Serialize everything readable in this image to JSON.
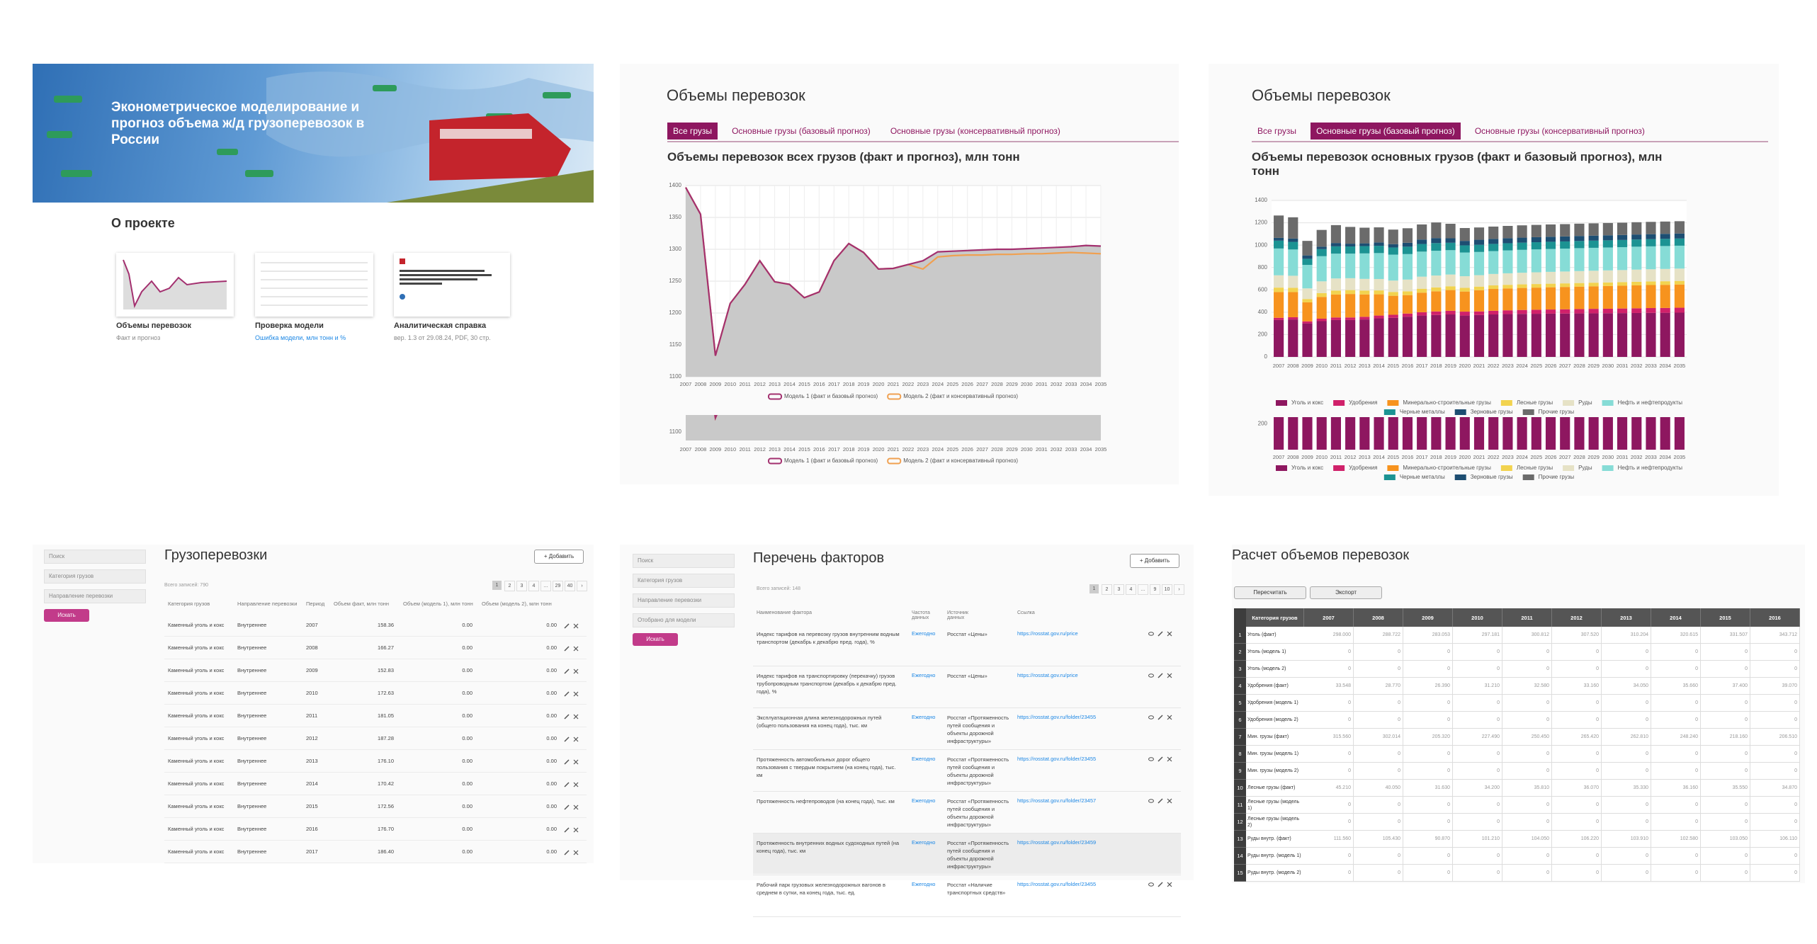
{
  "home": {
    "banner_title": "Эконометрическое моделирование и прогноз объема ж/д грузоперевозок в России",
    "about_title": "О проекте",
    "cards": [
      {
        "title": "Объемы перевозок",
        "subtitle": "Факт и прогноз"
      },
      {
        "title": "Проверка модели",
        "subtitle": "Ошибка модели, млн тонн и %"
      },
      {
        "title": "Аналитическая справка",
        "subtitle": "вер. 1.3 от 29.08.24, PDF, 30 стр."
      }
    ]
  },
  "volumes_all": {
    "title": "Объемы перевозок",
    "tabs": [
      "Все грузы",
      "Основные грузы (базовый прогноз)",
      "Основные грузы (консервативный прогноз)"
    ],
    "active_tab": 0
  },
  "volumes_main": {
    "title": "Объемы перевозок",
    "tabs": [
      "Все грузы",
      "Основные грузы (базовый прогноз)",
      "Основные грузы (консервативный прогноз)"
    ],
    "active_tab": 1
  },
  "chart_data": [
    {
      "type": "line",
      "title": "Объемы перевозок всех грузов (факт и прогноз), млн тонн",
      "categories": [
        "2007",
        "2008",
        "2009",
        "2010",
        "2011",
        "2012",
        "2013",
        "2014",
        "2015",
        "2016",
        "2017",
        "2018",
        "2019",
        "2020",
        "2021",
        "2022",
        "2023",
        "2024",
        "2025",
        "2026",
        "2027",
        "2028",
        "2029",
        "2030",
        "2031",
        "2032",
        "2033",
        "2034",
        "2035"
      ],
      "ylim": [
        1100,
        1400
      ],
      "yticks": [
        1100,
        1150,
        1200,
        1250,
        1300,
        1350,
        1400
      ],
      "grid": true,
      "area": true,
      "series": [
        {
          "name": "Модель 1 (факт и базовый прогноз)",
          "color": "#a3306f",
          "values": [
            1397,
            1355,
            1133,
            1215,
            1245,
            1282,
            1249,
            1245,
            1224,
            1233,
            1282,
            1309,
            1295,
            1269,
            1270,
            1276,
            1282,
            1296,
            1297,
            1298,
            1299,
            1300,
            1300,
            1301,
            1302,
            1303,
            1304,
            1306,
            1305
          ]
        },
        {
          "name": "Модель 2 (факт и консервативный прогноз)",
          "color": "#f0a050",
          "values": [
            1397,
            1355,
            1133,
            1215,
            1245,
            1282,
            1249,
            1245,
            1224,
            1233,
            1282,
            1309,
            1295,
            1269,
            1270,
            1276,
            1269,
            1288,
            1290,
            1291,
            1291,
            1292,
            1292,
            1293,
            1293,
            1294,
            1295,
            1294,
            1293
          ]
        }
      ],
      "navigator": {
        "ylim": [
          1080,
          1140
        ],
        "yticks": [
          1100
        ]
      }
    },
    {
      "type": "bar",
      "stacked": true,
      "title": "Объемы перевозок основных грузов (факт и базовый прогноз), млн тонн",
      "categories": [
        "2007",
        "2008",
        "2009",
        "2010",
        "2011",
        "2012",
        "2013",
        "2014",
        "2015",
        "2016",
        "2017",
        "2018",
        "2019",
        "2020",
        "2021",
        "2022",
        "2023",
        "2024",
        "2025",
        "2026",
        "2027",
        "2028",
        "2029",
        "2030",
        "2031",
        "2032",
        "2033",
        "2034",
        "2035"
      ],
      "ylim": [
        0,
        1400
      ],
      "yticks": [
        0,
        200,
        400,
        600,
        800,
        1000,
        1200,
        1400
      ],
      "grid": true,
      "series": [
        {
          "name": "Уголь и кокс",
          "color": "#8e1760",
          "values": [
            330,
            335,
            300,
            320,
            330,
            330,
            335,
            345,
            350,
            360,
            370,
            375,
            380,
            370,
            375,
            380,
            383,
            385,
            386,
            387,
            388,
            389,
            390,
            391,
            392,
            393,
            394,
            395,
            396
          ]
        },
        {
          "name": "Удобрения",
          "color": "#d0216a",
          "values": [
            20,
            20,
            18,
            22,
            23,
            23,
            24,
            25,
            27,
            28,
            30,
            32,
            33,
            35,
            32,
            33,
            34,
            35,
            36,
            37,
            38,
            39,
            40,
            40,
            41,
            42,
            43,
            43,
            44
          ]
        },
        {
          "name": "Минерально-строительные грузы",
          "color": "#f7931e",
          "values": [
            230,
            225,
            170,
            195,
            205,
            210,
            200,
            190,
            170,
            165,
            175,
            180,
            185,
            180,
            190,
            195,
            196,
            197,
            198,
            199,
            200,
            201,
            202,
            203,
            204,
            205,
            206,
            207,
            208
          ]
        },
        {
          "name": "Лесные грузы",
          "color": "#f2d34f",
          "values": [
            40,
            38,
            30,
            34,
            36,
            35,
            35,
            35,
            34,
            34,
            35,
            35,
            34,
            33,
            32,
            32,
            32,
            32,
            32,
            32,
            32,
            32,
            32,
            32,
            32,
            32,
            32,
            32,
            32
          ]
        },
        {
          "name": "Руды",
          "color": "#e6e2c6",
          "values": [
            110,
            108,
            95,
            105,
            108,
            106,
            104,
            102,
            102,
            105,
            108,
            106,
            105,
            104,
            102,
            102,
            103,
            104,
            105,
            106,
            106,
            107,
            107,
            108,
            108,
            109,
            109,
            110,
            110
          ]
        },
        {
          "name": "Нефть и нефтепродукты",
          "color": "#86dcd6",
          "values": [
            240,
            235,
            210,
            225,
            222,
            220,
            228,
            232,
            232,
            228,
            224,
            222,
            218,
            212,
            208,
            205,
            205,
            205,
            205,
            205,
            205,
            205,
            205,
            205,
            205,
            205,
            205,
            205,
            205
          ]
        },
        {
          "name": "Черные металлы",
          "color": "#1c9393",
          "values": [
            70,
            68,
            55,
            63,
            65,
            64,
            65,
            65,
            64,
            66,
            68,
            68,
            66,
            64,
            64,
            64,
            64,
            64,
            64,
            64,
            64,
            64,
            64,
            64,
            64,
            64,
            64,
            64,
            64
          ]
        },
        {
          "name": "Зерновые грузы",
          "color": "#1d4e72",
          "values": [
            25,
            30,
            30,
            22,
            30,
            25,
            25,
            30,
            30,
            35,
            40,
            45,
            40,
            40,
            45,
            45,
            45,
            45,
            45,
            45,
            45,
            45,
            45,
            45,
            45,
            45,
            45,
            45,
            45
          ]
        },
        {
          "name": "Прочие грузы",
          "color": "#6b6b6b",
          "values": [
            200,
            190,
            130,
            150,
            160,
            150,
            140,
            135,
            130,
            130,
            135,
            140,
            130,
            115,
            110,
            110,
            110,
            110,
            110,
            110,
            110,
            110,
            110,
            110,
            110,
            110,
            110,
            110,
            110
          ]
        }
      ],
      "navigator": {
        "ylim": [
          0,
          250
        ],
        "yticks": [
          200
        ]
      }
    }
  ],
  "cargo": {
    "title": "Грузоперевозки",
    "add_button": "+ Добавить",
    "filters": [
      "Поиск",
      "Категория грузов",
      "Направление перевозки"
    ],
    "search_button": "Искать",
    "records": "Всего записей: 790",
    "pages": [
      "1",
      "2",
      "3",
      "4",
      "…",
      "29",
      "40",
      "›"
    ],
    "headers": [
      "Категория грузов",
      "Направление перевозки",
      "Период",
      "Объем факт, млн тонн",
      "Объем (модель 1), млн тонн",
      "Объем (модель 2), млн тонн"
    ],
    "rows": [
      [
        "Каменный уголь и кокс",
        "Внутреннее",
        "2007",
        "158.36",
        "0.00",
        "0.00"
      ],
      [
        "Каменный уголь и кокс",
        "Внутреннее",
        "2008",
        "166.27",
        "0.00",
        "0.00"
      ],
      [
        "Каменный уголь и кокс",
        "Внутреннее",
        "2009",
        "152.83",
        "0.00",
        "0.00"
      ],
      [
        "Каменный уголь и кокс",
        "Внутреннее",
        "2010",
        "172.63",
        "0.00",
        "0.00"
      ],
      [
        "Каменный уголь и кокс",
        "Внутреннее",
        "2011",
        "181.05",
        "0.00",
        "0.00"
      ],
      [
        "Каменный уголь и кокс",
        "Внутреннее",
        "2012",
        "187.28",
        "0.00",
        "0.00"
      ],
      [
        "Каменный уголь и кокс",
        "Внутреннее",
        "2013",
        "176.10",
        "0.00",
        "0.00"
      ],
      [
        "Каменный уголь и кокс",
        "Внутреннее",
        "2014",
        "170.42",
        "0.00",
        "0.00"
      ],
      [
        "Каменный уголь и кокс",
        "Внутреннее",
        "2015",
        "172.56",
        "0.00",
        "0.00"
      ],
      [
        "Каменный уголь и кокс",
        "Внутреннее",
        "2016",
        "176.70",
        "0.00",
        "0.00"
      ],
      [
        "Каменный уголь и кокс",
        "Внутреннее",
        "2017",
        "186.40",
        "0.00",
        "0.00"
      ]
    ]
  },
  "factors": {
    "title": "Перечень факторов",
    "add_button": "+ Добавить",
    "filters": [
      "Поиск",
      "Категория грузов",
      "Направление перевозки",
      "Отобрано для модели"
    ],
    "search_button": "Искать",
    "records": "Всего записей: 148",
    "pages": [
      "1",
      "2",
      "3",
      "4",
      "…",
      "9",
      "10",
      "›"
    ],
    "headers": [
      "Наименование фактора",
      "Частота данных",
      "Источник данных",
      "Ссылка"
    ],
    "rows": [
      {
        "name": "Индекс тарифов на перевозку грузов внутренним водным транспортом (декабрь к декабрю пред. года), %",
        "freq": "Ежегодно",
        "source": "Росстат «Цены»",
        "link": "https://rosstat.gov.ru/price"
      },
      {
        "name": "Индекс тарифов на транспортировку (перекачку) грузов трубопроводным транспортом (декабрь к декабрю пред. года), %",
        "freq": "Ежегодно",
        "source": "Росстат «Цены»",
        "link": "https://rosstat.gov.ru/price"
      },
      {
        "name": "Эксплуатационная длина железнодорожных путей (общего пользования на конец года), тыс. км",
        "freq": "Ежегодно",
        "source": "Росстат «Протяженность путей сообщения и объекты дорожной инфраструктуры»",
        "link": "https://rosstat.gov.ru/folder/23455"
      },
      {
        "name": "Протяженность автомобильных дорог общего пользования с твердым покрытием (на конец года), тыс. км",
        "freq": "Ежегодно",
        "source": "Росстат «Протяженность путей сообщения и объекты дорожной инфраструктуры»",
        "link": "https://rosstat.gov.ru/folder/23455"
      },
      {
        "name": "Протяженность нефтепроводов (на конец года), тыс. км",
        "freq": "Ежегодно",
        "source": "Росстат «Протяженность путей сообщения и объекты дорожной инфраструктуры»",
        "link": "https://rosstat.gov.ru/folder/23457"
      },
      {
        "name": "Протяженность внутренних водных судоходных путей (на конец года), тыс. км",
        "freq": "Ежегодно",
        "source": "Росстат «Протяженность путей сообщения и объекты дорожной инфраструктуры»",
        "link": "https://rosstat.gov.ru/folder/23459"
      },
      {
        "name": "Рабочий парк грузовых железнодорожных вагонов в среднем в сутки, на конец года, тыс. ед.",
        "freq": "Ежегодно",
        "source": "Росстат «Наличие транспортных средств»",
        "link": "https://rosstat.gov.ru/folder/23455"
      }
    ]
  },
  "calc": {
    "title": "Расчет объемов перевозок",
    "buttons": [
      "Пересчитать",
      "Экспорт"
    ],
    "header": [
      "Категория грузов",
      "2007",
      "2008",
      "2009",
      "2010",
      "2011",
      "2012",
      "2013",
      "2014",
      "2015",
      "2016"
    ],
    "rows": [
      {
        "n": "1",
        "name": "Уголь (факт)",
        "values": [
          "298.000",
          "288.722",
          "283.053",
          "297.181",
          "300.812",
          "307.520",
          "310.204",
          "320.615",
          "331.507",
          "343.712"
        ]
      },
      {
        "n": "2",
        "name": "Уголь (модель 1)",
        "values": [
          "0",
          "0",
          "0",
          "0",
          "0",
          "0",
          "0",
          "0",
          "0",
          "0"
        ]
      },
      {
        "n": "3",
        "name": "Уголь (модель 2)",
        "values": [
          "0",
          "0",
          "0",
          "0",
          "0",
          "0",
          "0",
          "0",
          "0",
          "0"
        ]
      },
      {
        "n": "4",
        "name": "Удобрения (факт)",
        "values": [
          "33.548",
          "28.770",
          "26.390",
          "31.210",
          "32.580",
          "33.160",
          "34.050",
          "35.660",
          "37.400",
          "39.070"
        ]
      },
      {
        "n": "5",
        "name": "Удобрения (модель 1)",
        "values": [
          "0",
          "0",
          "0",
          "0",
          "0",
          "0",
          "0",
          "0",
          "0",
          "0"
        ]
      },
      {
        "n": "6",
        "name": "Удобрения (модель 2)",
        "values": [
          "0",
          "0",
          "0",
          "0",
          "0",
          "0",
          "0",
          "0",
          "0",
          "0"
        ]
      },
      {
        "n": "7",
        "name": "Мин. грузы (факт)",
        "values": [
          "315.560",
          "302.014",
          "205.320",
          "227.490",
          "250.450",
          "265.420",
          "262.810",
          "248.240",
          "218.160",
          "206.510"
        ]
      },
      {
        "n": "8",
        "name": "Мин. грузы (модель 1)",
        "values": [
          "0",
          "0",
          "0",
          "0",
          "0",
          "0",
          "0",
          "0",
          "0",
          "0"
        ]
      },
      {
        "n": "9",
        "name": "Мин. грузы (модель 2)",
        "values": [
          "0",
          "0",
          "0",
          "0",
          "0",
          "0",
          "0",
          "0",
          "0",
          "0"
        ]
      },
      {
        "n": "10",
        "name": "Лесные грузы (факт)",
        "values": [
          "45.210",
          "40.050",
          "31.630",
          "34.200",
          "35.810",
          "36.070",
          "35.330",
          "36.160",
          "35.550",
          "34.870"
        ]
      },
      {
        "n": "11",
        "name": "Лесные грузы (модель 1)",
        "values": [
          "0",
          "0",
          "0",
          "0",
          "0",
          "0",
          "0",
          "0",
          "0",
          "0"
        ]
      },
      {
        "n": "12",
        "name": "Лесные грузы (модель 2)",
        "values": [
          "0",
          "0",
          "0",
          "0",
          "0",
          "0",
          "0",
          "0",
          "0",
          "0"
        ]
      },
      {
        "n": "13",
        "name": "Руды внутр. (факт)",
        "values": [
          "111.560",
          "105.430",
          "90.870",
          "101.210",
          "104.050",
          "106.220",
          "103.910",
          "102.580",
          "103.050",
          "106.110"
        ]
      },
      {
        "n": "14",
        "name": "Руды внутр. (модель 1)",
        "values": [
          "0",
          "0",
          "0",
          "0",
          "0",
          "0",
          "0",
          "0",
          "0",
          "0"
        ]
      },
      {
        "n": "15",
        "name": "Руды внутр. (модель 2)",
        "values": [
          "0",
          "0",
          "0",
          "0",
          "0",
          "0",
          "0",
          "0",
          "0",
          "0"
        ]
      }
    ]
  }
}
